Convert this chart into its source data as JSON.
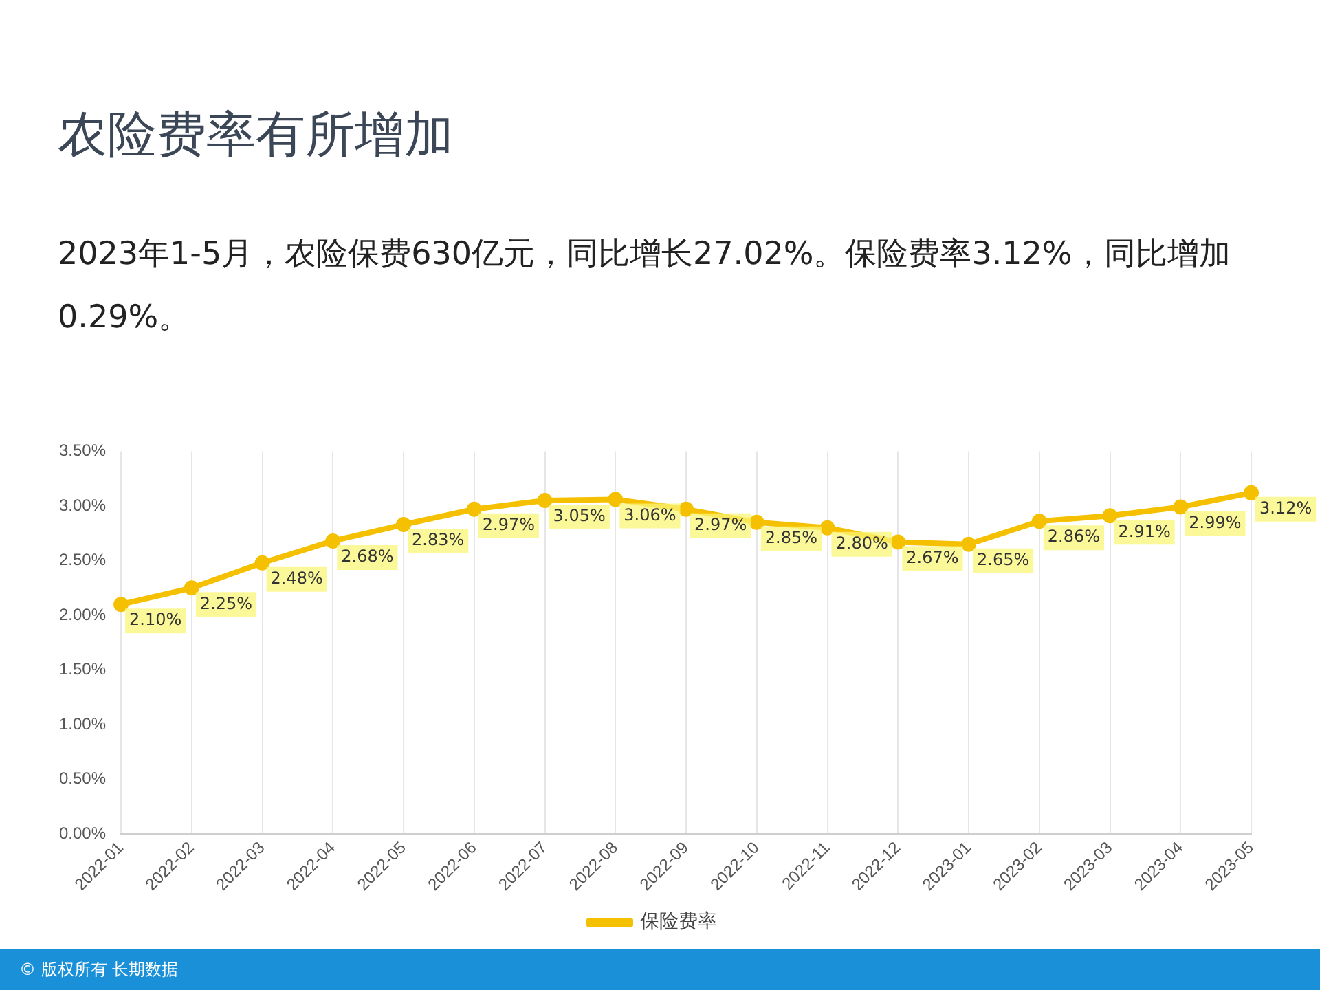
{
  "chart_data": {
    "type": "line",
    "title": "农险费率有所增加",
    "subtitle": "2023年1-5月，农险保费630亿元，同比增长27.02%。保险费率3.12%，同比增加0.29%。",
    "categories": [
      "2022-01",
      "2022-02",
      "2022-03",
      "2022-04",
      "2022-05",
      "2022-06",
      "2022-07",
      "2022-08",
      "2022-09",
      "2022-10",
      "2022-11",
      "2022-12",
      "2023-01",
      "2023-02",
      "2023-03",
      "2023-04",
      "2023-05"
    ],
    "series": [
      {
        "name": "保险费率",
        "color": "#f5c000",
        "values": [
          2.1,
          2.25,
          2.48,
          2.68,
          2.83,
          2.97,
          3.05,
          3.06,
          2.97,
          2.85,
          2.8,
          2.67,
          2.65,
          2.86,
          2.91,
          2.99,
          3.12
        ],
        "value_labels": [
          "2.10%",
          "2.25%",
          "2.48%",
          "2.68%",
          "2.83%",
          "2.97%",
          "3.05%",
          "3.06%",
          "2.97%",
          "2.85%",
          "2.80%",
          "2.67%",
          "2.65%",
          "2.86%",
          "2.91%",
          "2.99%",
          "3.12%"
        ]
      }
    ],
    "ylim": [
      0,
      3.5
    ],
    "yticks": [
      {
        "value": 0,
        "label": "0.00%"
      },
      {
        "value": 0.5,
        "label": "0.50%"
      },
      {
        "value": 1,
        "label": "1.00%"
      },
      {
        "value": 1.5,
        "label": "1.50%"
      },
      {
        "value": 2,
        "label": "2.00%"
      },
      {
        "value": 2.5,
        "label": "2.50%"
      },
      {
        "value": 3,
        "label": "3.00%"
      },
      {
        "value": 3.5,
        "label": "3.50%"
      }
    ],
    "grid": "x",
    "legend": "bottom",
    "marker": "circle",
    "line_style": "solid",
    "annotations": [
      "© 版权所有 长期数据"
    ]
  }
}
